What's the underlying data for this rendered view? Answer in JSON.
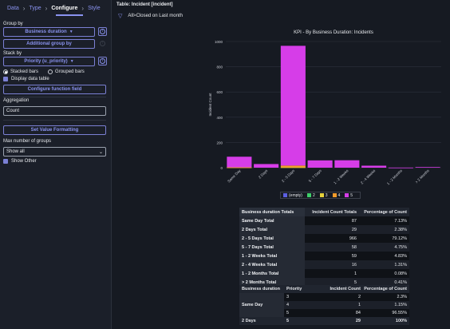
{
  "wizard": {
    "steps": [
      "Data",
      "Type",
      "Configure",
      "Style"
    ],
    "active": "Configure"
  },
  "left": {
    "group_by_label": "Group by",
    "group_by_value": "Business duration",
    "additional_group_by": "Additional group by",
    "stack_by_label": "Stack by",
    "stack_by_value": "Priority (u_priority)",
    "stacked_bars": "Stacked bars",
    "grouped_bars": "Grouped bars",
    "display_data_table": "Display data table",
    "configure_function_field": "Configure function field",
    "aggregation_label": "Aggregation",
    "aggregation_value": "Count",
    "set_value_formatting": "Set Value Formatting",
    "max_groups_label": "Max number of groups",
    "max_groups_value": "Show all",
    "show_other": "Show Other",
    "info_glyph": "i"
  },
  "right": {
    "table_title": "Table: Incident [incident]",
    "filter_text": "All>Closed on Last month"
  },
  "colors": {
    "accent": "#8a93f0",
    "p_empty": "#5b5fe0",
    "p2": "#3fcf6a",
    "p3": "#e6d23b",
    "p4": "#f29b2b",
    "p5": "#d63de8"
  },
  "chart_data": {
    "type": "bar",
    "title": "KPI - By Business Duration: Incidents",
    "ylabel": "Incident Count",
    "xlabel": "",
    "ylim": [
      0,
      1000
    ],
    "yticks": [
      0,
      200,
      400,
      600,
      800,
      1000
    ],
    "categories": [
      "Same Day",
      "2 Days",
      "2 - 5 Days",
      "5 - 7 Days",
      "1 - 2 Weeks",
      "2 - 4 Weeks",
      "1 - 2 Months",
      "> 2 Months"
    ],
    "stacked": true,
    "series": [
      {
        "name": "(empty)",
        "color": "#5b5fe0",
        "values": [
          0,
          0,
          0,
          0,
          0,
          0,
          0,
          0
        ]
      },
      {
        "name": "2",
        "color": "#3fcf6a",
        "values": [
          0,
          0,
          0,
          0,
          0,
          0,
          0,
          0
        ]
      },
      {
        "name": "3",
        "color": "#e6d23b",
        "values": [
          2,
          0,
          3,
          0,
          0,
          0,
          0,
          0
        ]
      },
      {
        "name": "4",
        "color": "#f29b2b",
        "values": [
          1,
          0,
          14,
          0,
          0,
          0,
          0,
          0
        ]
      },
      {
        "name": "5",
        "color": "#d63de8",
        "values": [
          84,
          29,
          949,
          58,
          59,
          16,
          1,
          5
        ]
      }
    ],
    "legend": "bottom"
  },
  "totals_table": {
    "headers": [
      "Business duration Totals",
      "Incident Count Totals",
      "Percentage of Count"
    ],
    "rows": [
      [
        "Same Day Total",
        "87",
        "7.13%"
      ],
      [
        "2 Days Total",
        "29",
        "2.38%"
      ],
      [
        "2 - 5 Days Total",
        "966",
        "79.12%"
      ],
      [
        "5 - 7 Days Total",
        "58",
        "4.75%"
      ],
      [
        "1 - 2 Weeks Total",
        "59",
        "4.83%"
      ],
      [
        "2 - 4 Weeks Total",
        "16",
        "1.31%"
      ],
      [
        "1 - 2 Months Total",
        "1",
        "0.08%"
      ],
      [
        "> 2 Months Total",
        "5",
        "0.41%"
      ]
    ]
  },
  "detail_table": {
    "headers": [
      "Business duration",
      "Priority",
      "Incident Count",
      "Percentage of Count"
    ],
    "same_day_label": "Same Day",
    "same_day_rows": [
      [
        "3",
        "2",
        "2.3%"
      ],
      [
        "4",
        "1",
        "1.15%"
      ],
      [
        "5",
        "84",
        "96.55%"
      ]
    ],
    "last_row": [
      "2 Days",
      "5",
      "29",
      "100%"
    ]
  }
}
